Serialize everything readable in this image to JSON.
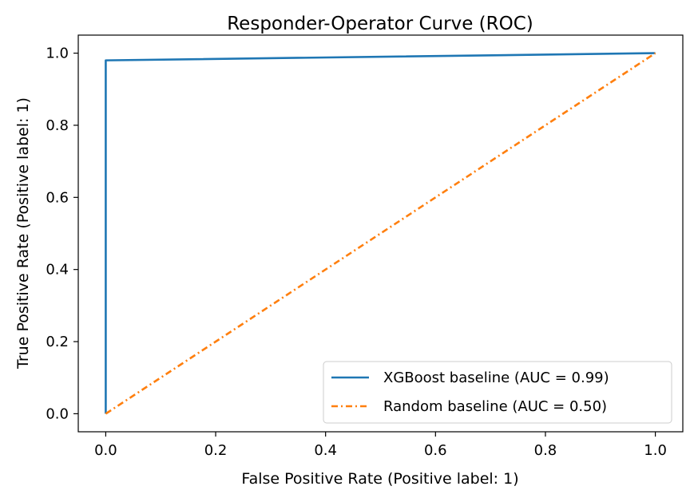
{
  "chart_data": {
    "type": "line",
    "title": "Responder-Operator Curve (ROC)",
    "xlabel": "False Positive Rate (Positive label: 1)",
    "ylabel": "True Positive Rate (Positive label: 1)",
    "xlim": [
      -0.05,
      1.05
    ],
    "ylim": [
      -0.05,
      1.05
    ],
    "x_ticks": [
      0.0,
      0.2,
      0.4,
      0.6,
      0.8,
      1.0
    ],
    "y_ticks": [
      0.0,
      0.2,
      0.4,
      0.6,
      0.8,
      1.0
    ],
    "x_tick_labels": [
      "0.0",
      "0.2",
      "0.4",
      "0.6",
      "0.8",
      "1.0"
    ],
    "y_tick_labels": [
      "0.0",
      "0.2",
      "0.4",
      "0.6",
      "0.8",
      "1.0"
    ],
    "grid": false,
    "legend_position": "lower-right",
    "series": [
      {
        "name": "XGBoost baseline (AUC = 0.99)",
        "color": "#1f77b4",
        "line_style": "solid",
        "x": [
          0.0,
          0.0,
          1.0
        ],
        "y": [
          0.0,
          0.98,
          1.0
        ]
      },
      {
        "name": "Random baseline (AUC = 0.50)",
        "color": "#ff7f0e",
        "line_style": "dashdot",
        "x": [
          0.0,
          1.0
        ],
        "y": [
          0.0,
          1.0
        ]
      }
    ]
  }
}
